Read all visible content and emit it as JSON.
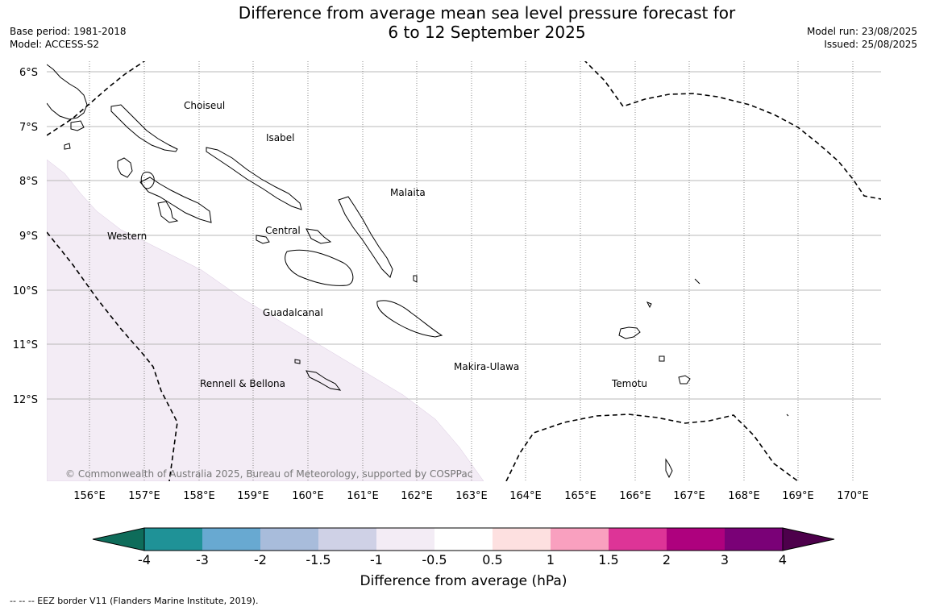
{
  "title": {
    "line1": "Difference from average mean sea level pressure forecast for",
    "line2": "6 to 12 September 2025"
  },
  "meta_left": {
    "base_period": "Base period: 1981-2018",
    "model": "Model: ACCESS-S2"
  },
  "meta_right": {
    "model_run": "Model run: 23/08/2025",
    "issued": "Issued: 25/08/2025"
  },
  "map": {
    "lat_labels": [
      "6°S",
      "7°S",
      "8°S",
      "9°S",
      "10°S",
      "11°S",
      "12°S"
    ],
    "lon_labels": [
      "156°E",
      "157°E",
      "158°E",
      "159°E",
      "160°E",
      "161°E",
      "162°E",
      "163°E",
      "164°E",
      "165°E",
      "166°E",
      "167°E",
      "168°E",
      "169°E",
      "170°E"
    ],
    "provinces": [
      "Choiseul",
      "Isabel",
      "Malaita",
      "Western",
      "Central",
      "Guadalcanal",
      "Makira-Ulawa",
      "Rennell & Bellona",
      "Temotu"
    ],
    "copyright": "© Commonwealth of Australia 2025, Bureau of Meteorology, supported by COSPPac",
    "anomaly_fill_color": "#f3ecf5"
  },
  "colorbar": {
    "ticks": [
      "-4",
      "-3",
      "-2",
      "-1.5",
      "-1",
      "-0.5",
      "0.5",
      "1",
      "1.5",
      "2",
      "3",
      "4"
    ],
    "colors": [
      "#1f9297",
      "#68a9d1",
      "#a8bcdb",
      "#cfd1e6",
      "#f3ecf5",
      "#ffffff",
      "#fde0e0",
      "#f9a0bf",
      "#dd3497",
      "#ae017e",
      "#7a0177"
    ],
    "low_extend_color": "#0e6c5a",
    "high_extend_color": "#4d004b",
    "label": "Difference from average (hPa)"
  },
  "footnote": "--  --  -- EEZ border V11 (Flanders Marine Institute, 2019)."
}
